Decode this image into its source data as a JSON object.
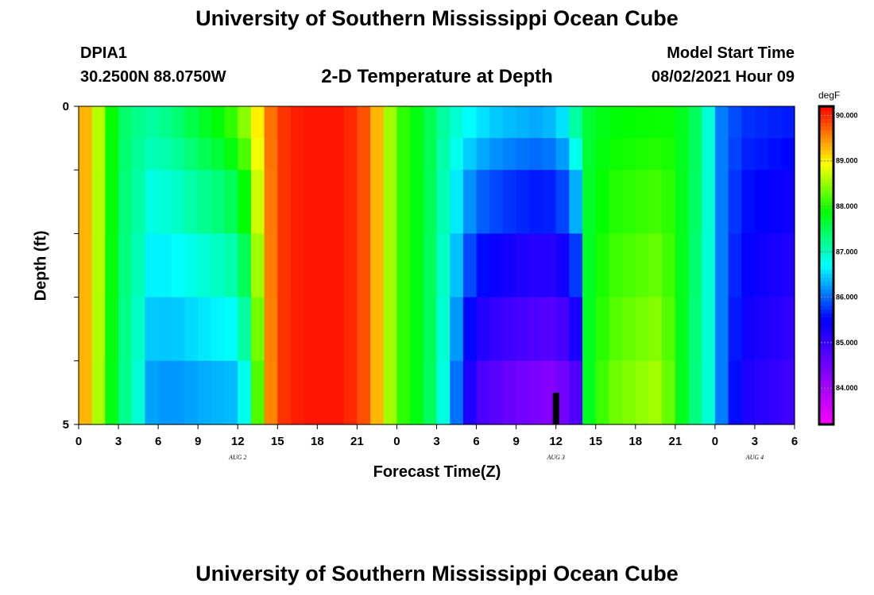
{
  "header": {
    "title": "University of Southern Mississippi Ocean Cube",
    "station": "DPIA1",
    "coords": "30.2500N  88.0750W",
    "subtitle": "2-D Temperature at Depth",
    "start_label": "Model Start Time",
    "start_value": "08/02/2021 Hour 09"
  },
  "footer": {
    "title": "University of Southern Mississippi Ocean Cube"
  },
  "chart_data": {
    "type": "heatmap",
    "title": "2-D Temperature at Depth",
    "xlabel": "Forecast Time(Z)",
    "ylabel": "Depth (ft)",
    "x_range_hours": [
      0,
      54
    ],
    "x_ticks": [
      "0",
      "3",
      "6",
      "9",
      "12",
      "15",
      "18",
      "21",
      "0",
      "3",
      "6",
      "9",
      "12",
      "15",
      "18",
      "21",
      "0",
      "3",
      "6"
    ],
    "date_labels": [
      {
        "hour": 12,
        "label": "AUG  2"
      },
      {
        "hour": 36,
        "label": "AUG  3"
      },
      {
        "hour": 51,
        "label": "AUG  4"
      }
    ],
    "y_range_ft": [
      0,
      5
    ],
    "y_ticks": [
      "0",
      "5"
    ],
    "depth_rows": [
      0.25,
      0.75,
      1.5,
      2.5,
      3.5,
      4.5
    ],
    "colorbar": {
      "unit": "degF",
      "min": 83.2,
      "max": 90.2,
      "ticks": [
        "84.000",
        "85.000",
        "86.000",
        "87.000",
        "88.000",
        "89.000",
        "90.000"
      ],
      "tick_values": [
        84,
        85,
        86,
        87,
        88,
        89,
        90
      ]
    },
    "surface_keyframes": [
      [
        0,
        89.6
      ],
      [
        1,
        89.0
      ],
      [
        2,
        88.3
      ],
      [
        3,
        87.5
      ],
      [
        5,
        87.2
      ],
      [
        7,
        87.4
      ],
      [
        9,
        87.8
      ],
      [
        11,
        88.1
      ],
      [
        13,
        88.8
      ],
      [
        14,
        89.4
      ],
      [
        15,
        89.9
      ],
      [
        17,
        90.1
      ],
      [
        20,
        90.1
      ],
      [
        22,
        89.7
      ],
      [
        23,
        88.9
      ],
      [
        24,
        88.2
      ],
      [
        26,
        87.7
      ],
      [
        27.5,
        87.2
      ],
      [
        29,
        86.9
      ],
      [
        32,
        86.6
      ],
      [
        35,
        86.5
      ],
      [
        36.5,
        86.8
      ],
      [
        37,
        87.2
      ],
      [
        38,
        87.6
      ],
      [
        40,
        87.8
      ],
      [
        45,
        87.9
      ],
      [
        46.5,
        87.5
      ],
      [
        47.5,
        86.9
      ],
      [
        48.5,
        86.1
      ],
      [
        50,
        85.8
      ],
      [
        54,
        85.7
      ]
    ],
    "bottom_keyframes": [
      [
        0,
        89.6
      ],
      [
        1,
        89.0
      ],
      [
        2,
        88.2
      ],
      [
        3,
        87.4
      ],
      [
        4.5,
        86.9
      ],
      [
        5,
        86.3
      ],
      [
        7,
        86.2
      ],
      [
        9,
        86.3
      ],
      [
        12,
        86.4
      ],
      [
        13,
        87.2
      ],
      [
        14,
        89.2
      ],
      [
        15,
        89.9
      ],
      [
        17,
        90.1
      ],
      [
        20,
        90.1
      ],
      [
        22,
        89.7
      ],
      [
        23,
        88.9
      ],
      [
        24,
        88.2
      ],
      [
        26,
        87.7
      ],
      [
        27,
        87.2
      ],
      [
        28,
        86.5
      ],
      [
        29,
        85.6
      ],
      [
        30,
        84.9
      ],
      [
        33,
        84.5
      ],
      [
        36,
        84.3
      ],
      [
        37.5,
        84.8
      ],
      [
        38,
        87.6
      ],
      [
        40,
        88.3
      ],
      [
        44,
        88.6
      ],
      [
        45,
        88.0
      ],
      [
        46.5,
        87.3
      ],
      [
        47.5,
        86.9
      ],
      [
        48.5,
        86.1
      ],
      [
        50,
        85.3
      ],
      [
        54,
        84.9
      ]
    ],
    "marker": {
      "hour": 36,
      "depth_from_ft": 4.5,
      "depth_to_ft": 5.0
    }
  }
}
